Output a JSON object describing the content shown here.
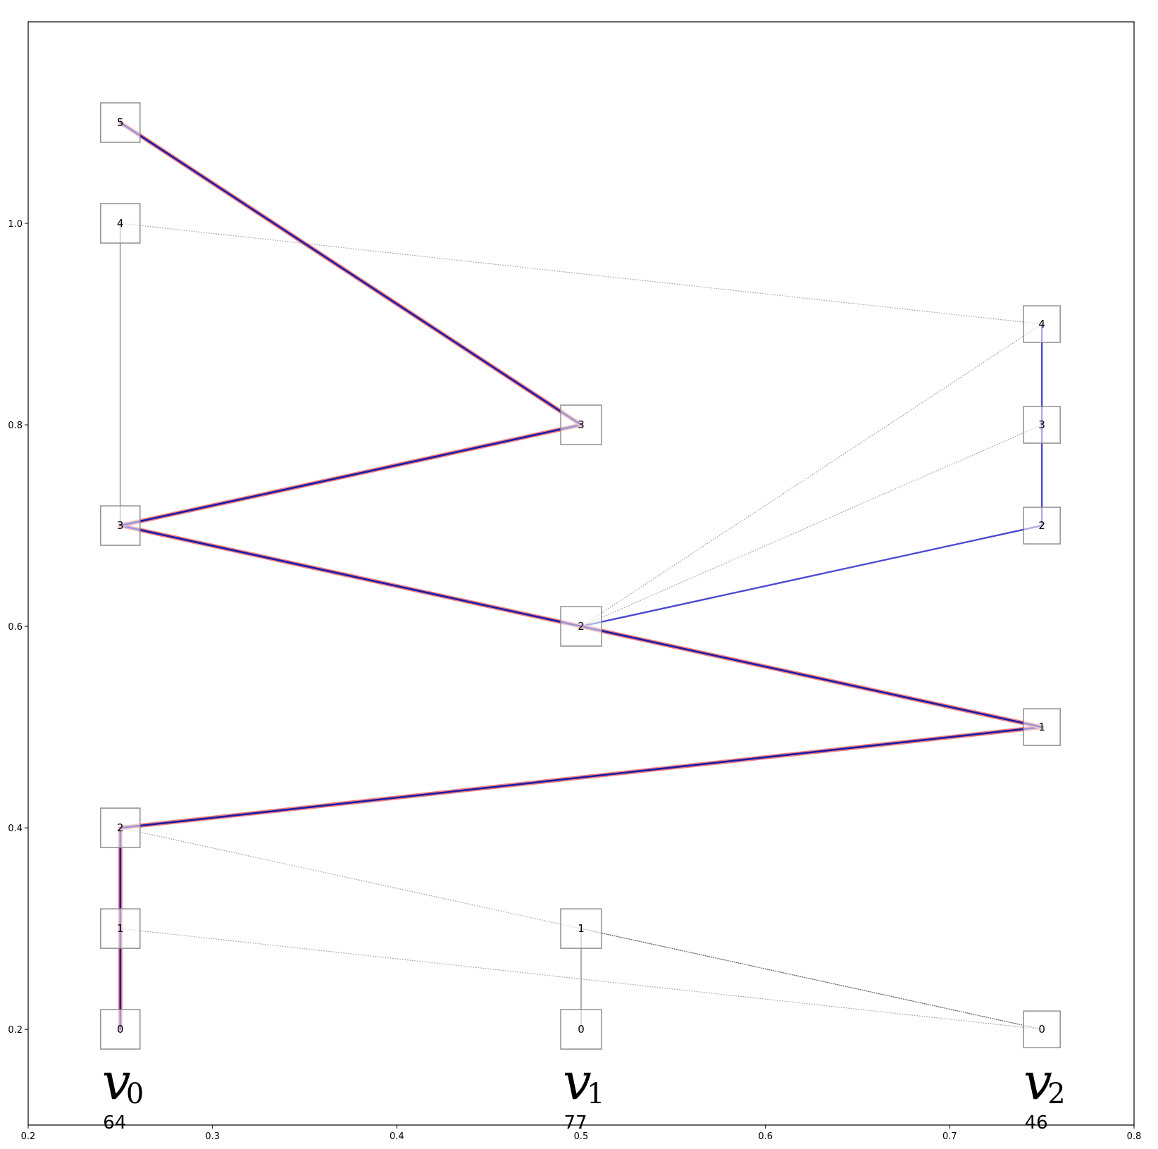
{
  "chart_data": {
    "type": "diagram",
    "xlim": [
      0.2,
      0.8
    ],
    "ylim": [
      0.105,
      1.2
    ],
    "x_ticks": [
      "0.2",
      "0.3",
      "0.4",
      "0.5",
      "0.6",
      "0.7",
      "0.8"
    ],
    "y_ticks": [
      "0.2",
      "0.4",
      "0.6",
      "0.8",
      "1.0"
    ],
    "grid": false,
    "columns": [
      {
        "id": "v0",
        "base": "v",
        "sub": "0",
        "count": "64",
        "x": 0.25
      },
      {
        "id": "v1",
        "base": "v",
        "sub": "1",
        "count": "77",
        "x": 0.5
      },
      {
        "id": "v2",
        "base": "v",
        "sub": "2",
        "count": "46",
        "x": 0.75
      }
    ],
    "nodes": [
      {
        "id": "v0-0",
        "col": "v0",
        "label": "0",
        "x": 0.25,
        "y": 0.2
      },
      {
        "id": "v0-1",
        "col": "v0",
        "label": "1",
        "x": 0.25,
        "y": 0.3
      },
      {
        "id": "v0-2",
        "col": "v0",
        "label": "2",
        "x": 0.25,
        "y": 0.4
      },
      {
        "id": "v0-3",
        "col": "v0",
        "label": "3",
        "x": 0.25,
        "y": 0.7
      },
      {
        "id": "v0-4",
        "col": "v0",
        "label": "4",
        "x": 0.25,
        "y": 1.0
      },
      {
        "id": "v0-5",
        "col": "v0",
        "label": "5",
        "x": 0.25,
        "y": 1.1
      },
      {
        "id": "v1-0",
        "col": "v1",
        "label": "0",
        "x": 0.5,
        "y": 0.2
      },
      {
        "id": "v1-1",
        "col": "v1",
        "label": "1",
        "x": 0.5,
        "y": 0.3
      },
      {
        "id": "v1-2",
        "col": "v1",
        "label": "2",
        "x": 0.5,
        "y": 0.6
      },
      {
        "id": "v1-3",
        "col": "v1",
        "label": "3",
        "x": 0.5,
        "y": 0.8
      },
      {
        "id": "v2-0",
        "col": "v2",
        "label": "0",
        "x": 0.75,
        "y": 0.2
      },
      {
        "id": "v2-1",
        "col": "v2",
        "label": "1",
        "x": 0.75,
        "y": 0.5
      },
      {
        "id": "v2-2",
        "col": "v2",
        "label": "2",
        "x": 0.75,
        "y": 0.7
      },
      {
        "id": "v2-3",
        "col": "v2",
        "label": "3",
        "x": 0.75,
        "y": 0.8
      },
      {
        "id": "v2-4",
        "col": "v2",
        "label": "4",
        "x": 0.75,
        "y": 0.9
      }
    ],
    "edges": [
      {
        "from": "v0-4",
        "to": "v0-3",
        "style": "gray-solid"
      },
      {
        "from": "v1-1",
        "to": "v1-0",
        "style": "gray-solid"
      },
      {
        "from": "v0-4",
        "to": "v2-4",
        "style": "dotted"
      },
      {
        "from": "v1-2",
        "to": "v2-4",
        "style": "dotted"
      },
      {
        "from": "v1-2",
        "to": "v2-3",
        "style": "dotted"
      },
      {
        "from": "v0-2",
        "to": "v2-0",
        "style": "dotted"
      },
      {
        "from": "v0-1",
        "to": "v2-0",
        "style": "dotted"
      },
      {
        "from": "v1-1",
        "to": "v2-0",
        "style": "dotted-dark"
      },
      {
        "from": "v1-2",
        "to": "v2-2",
        "style": "blue"
      },
      {
        "from": "v2-2",
        "to": "v2-4",
        "style": "blue"
      },
      {
        "from": "v0-0",
        "to": "v0-2",
        "style": "path"
      },
      {
        "from": "v0-2",
        "to": "v2-1",
        "style": "path"
      },
      {
        "from": "v2-1",
        "to": "v1-2",
        "style": "path"
      },
      {
        "from": "v1-2",
        "to": "v0-3",
        "style": "path"
      },
      {
        "from": "v0-3",
        "to": "v1-3",
        "style": "path"
      },
      {
        "from": "v1-3",
        "to": "v0-5",
        "style": "path"
      }
    ],
    "colors": {
      "path_outer": "#f08080",
      "path_inner": "#1a1aa8",
      "blue_edge": "#4b4bd0",
      "gray_edge": "#b0b0b0",
      "dotted_edge": "#999999",
      "dotted_dark_edge": "#555555",
      "node_border": "#888888"
    }
  }
}
